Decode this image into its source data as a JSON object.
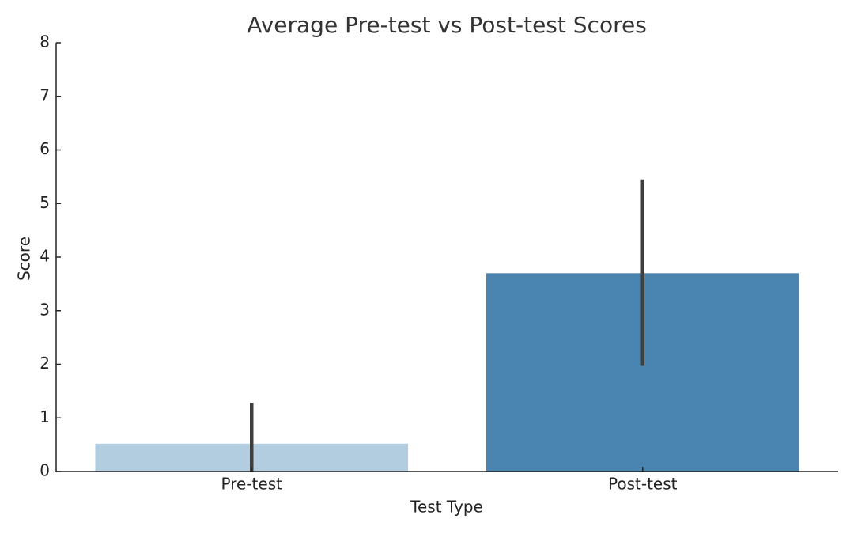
{
  "chart_data": {
    "type": "bar",
    "title": "Average Pre-test vs Post-test Scores",
    "x_label": "Test Type",
    "y_label": "Score",
    "categories": [
      "Pre-test",
      "Post-test"
    ],
    "values": [
      0.52,
      3.7
    ],
    "colors": [
      "#b3cde0",
      "#4a84b0"
    ],
    "ci_low": [
      0,
      1.97
    ],
    "ci_high": [
      1.28,
      5.45
    ],
    "error_color": "#3f3f3f",
    "ylim": [
      0,
      8
    ],
    "yticks": [
      0,
      1,
      2,
      3,
      4,
      5,
      6,
      7,
      8
    ],
    "grid": false
  }
}
